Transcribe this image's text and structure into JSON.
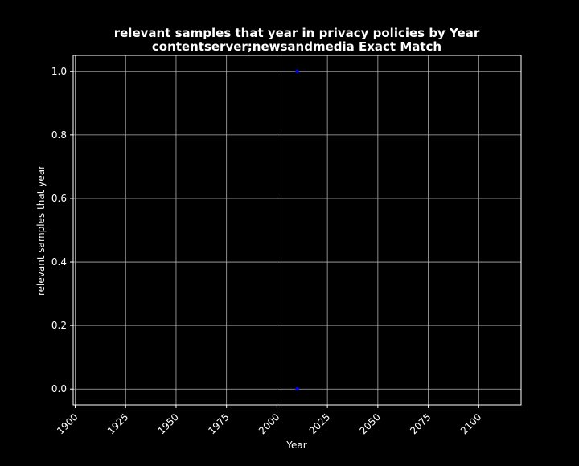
{
  "chart_data": {
    "type": "scatter",
    "title": "relevant samples that year in privacy policies by Year\ncontentserver;newsandmedia Exact Match",
    "title_lines": [
      "relevant samples that year in privacy policies by Year",
      "contentserver;newsandmedia Exact Match"
    ],
    "xlabel": "Year",
    "ylabel": "relevant samples that year",
    "xlim": [
      1899,
      2121
    ],
    "ylim": [
      -0.05,
      1.05
    ],
    "x_ticks": [
      1900,
      1925,
      1950,
      1975,
      2000,
      2025,
      2050,
      2075,
      2100
    ],
    "x_tick_labels": [
      "1900",
      "1925",
      "1950",
      "1975",
      "2000",
      "2025",
      "2050",
      "2075",
      "2100"
    ],
    "y_ticks": [
      0.0,
      0.2,
      0.4,
      0.6,
      0.8,
      1.0
    ],
    "y_tick_labels": [
      "0.0",
      "0.2",
      "0.4",
      "0.6",
      "0.8",
      "1.0"
    ],
    "grid": true,
    "series": [
      {
        "color": "#0000ff",
        "points": [
          {
            "x": 2010,
            "y": 1.0
          },
          {
            "x": 2010,
            "y": 0.0
          }
        ]
      }
    ],
    "colors": {
      "background": "#000000",
      "axes": "#ffffff",
      "grid": "#b0b0b0",
      "text": "#ffffff",
      "marker": "#0000ff"
    }
  }
}
